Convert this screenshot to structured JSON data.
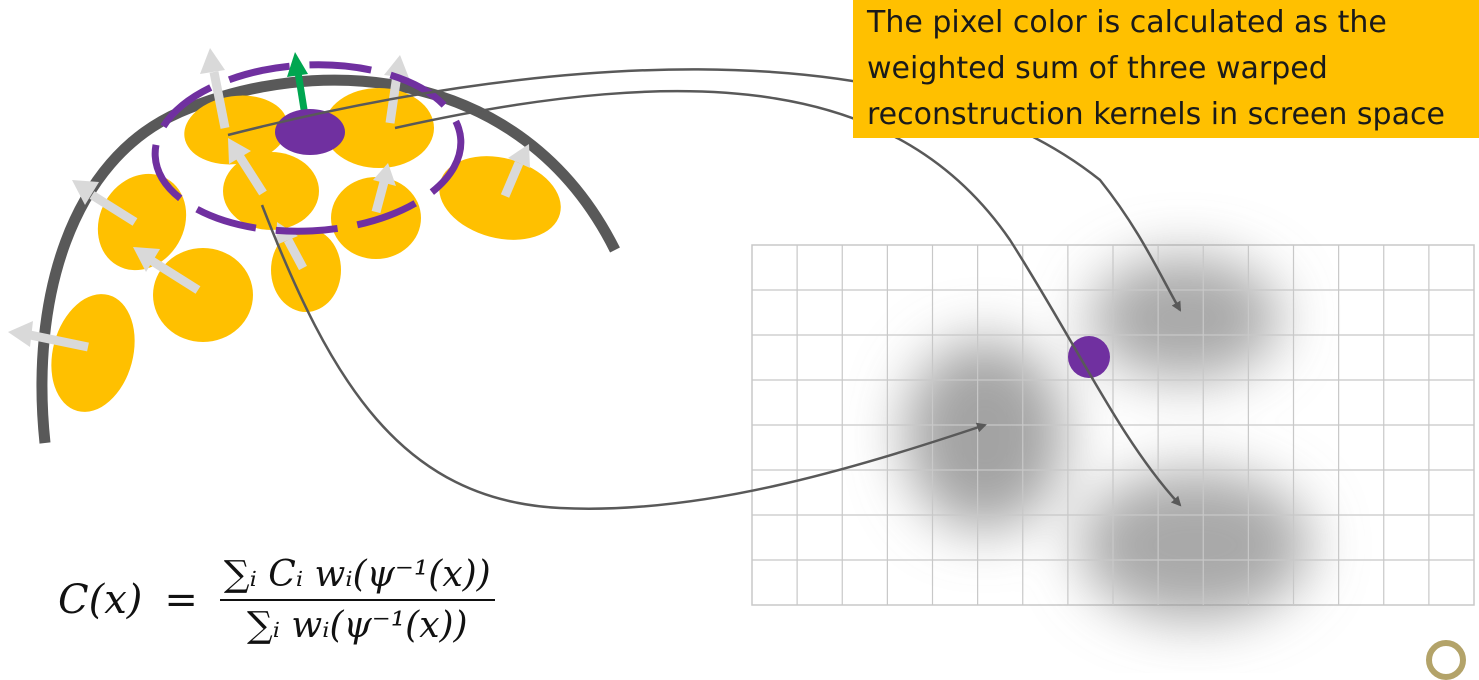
{
  "callout": {
    "lines": [
      "The pixel color is calculated as the",
      "weighted sum of three warped",
      "reconstruction kernels in screen space"
    ]
  },
  "formula": {
    "lhs": "C(x)",
    "equals": "=",
    "numerator": "∑ᵢ Cᵢ wᵢ(ψ⁻¹(x))",
    "denominator": "∑ᵢ wᵢ(ψ⁻¹(x))"
  },
  "colors": {
    "surface": "#595959",
    "splat": "#ffc000",
    "normal_arrow": "#d9d9d9",
    "footprint": "#7030a0",
    "pixel": "#7030a0",
    "surface_normal": "#00a650",
    "kernel_shadow": "#8c8c8c",
    "grid": "#c8c8c8",
    "mapping_arrow": "#595959",
    "callout_background": "#ffc000"
  },
  "grid": {
    "columns": 16,
    "rows": 8
  },
  "icons": [
    "normal-arrow-icon",
    "surface-normal-icon",
    "mapping-arrow-icon",
    "logo-icon"
  ]
}
